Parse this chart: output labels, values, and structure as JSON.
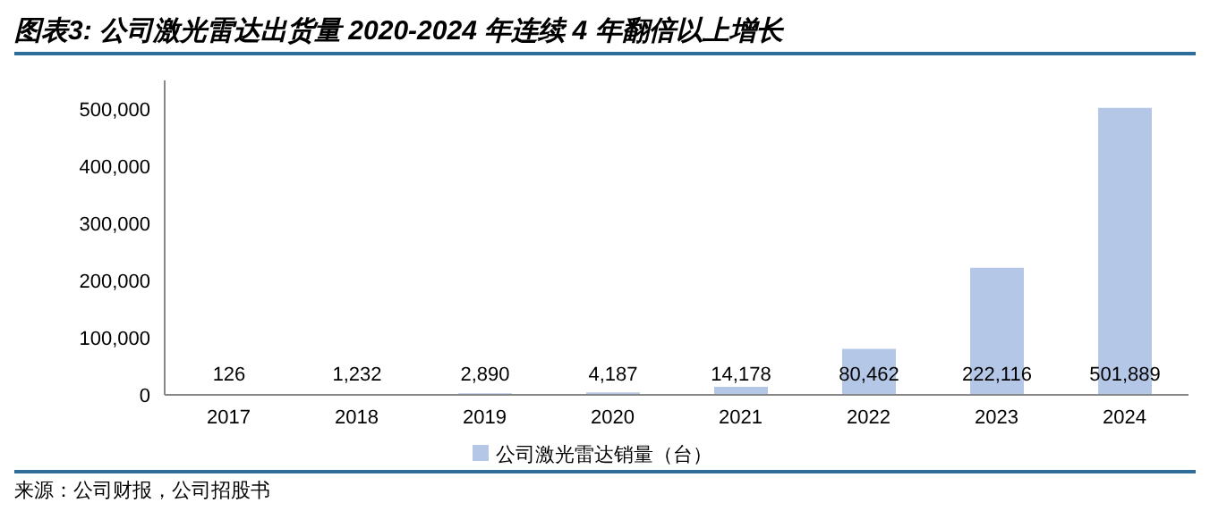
{
  "chart_data": {
    "type": "bar",
    "title": "图表3:  公司激光雷达出货量 2020-2024 年连续 4 年翻倍以上增长",
    "categories": [
      "2017",
      "2018",
      "2019",
      "2020",
      "2021",
      "2022",
      "2023",
      "2024"
    ],
    "series": [
      {
        "name": "公司激光雷达销量（台）",
        "color": "#b4c7e7",
        "values": [
          126,
          1232,
          2890,
          4187,
          14178,
          80462,
          222116,
          501889
        ],
        "value_labels": [
          "126",
          "1,232",
          "2,890",
          "4,187",
          "14,178",
          "80,462",
          "222,116",
          "501,889"
        ]
      }
    ],
    "ylim": [
      0,
      550000
    ],
    "yticks": [
      0,
      {
        "value": 100000,
        "label": "100,000"
      },
      {
        "value": 200000,
        "label": "200,000"
      },
      {
        "value": 300000,
        "label": "300,000"
      },
      {
        "value": 400000,
        "label": "400,000"
      },
      {
        "value": 500000,
        "label": "500,000"
      }
    ],
    "legend": "bottom",
    "grid": false,
    "annotations": [
      "来源：公司财报，公司招股书"
    ]
  }
}
